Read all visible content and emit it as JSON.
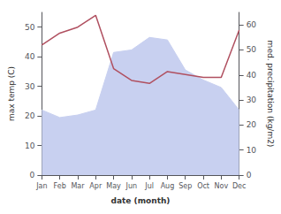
{
  "chart_data": {
    "type": "line",
    "xlabel": "date (month)",
    "ylabel": "max temp (C)",
    "y2label": "med. precipitation (kg/m2)",
    "categories": [
      "Jan",
      "Feb",
      "Mar",
      "Apr",
      "May",
      "Jun",
      "Jul",
      "Aug",
      "Sep",
      "Oct",
      "Nov",
      "Dec"
    ],
    "series": [
      {
        "type": "area",
        "axis": "y2",
        "color": "#c8d0f0",
        "values": [
          26,
          23,
          24,
          26,
          49,
          50,
          55,
          54,
          42,
          38,
          35,
          26
        ]
      },
      {
        "type": "line",
        "color": "#b05060",
        "values": [
          44,
          48,
          50,
          54,
          36,
          32,
          31,
          35,
          34,
          33,
          33,
          49
        ]
      }
    ],
    "ylim": [
      0,
      55
    ],
    "yticks": [
      0,
      10,
      20,
      30,
      40,
      50
    ],
    "y2lim": [
      0,
      65
    ],
    "y2ticks": [
      0,
      10,
      20,
      30,
      40,
      50,
      60
    ],
    "grid": false
  }
}
